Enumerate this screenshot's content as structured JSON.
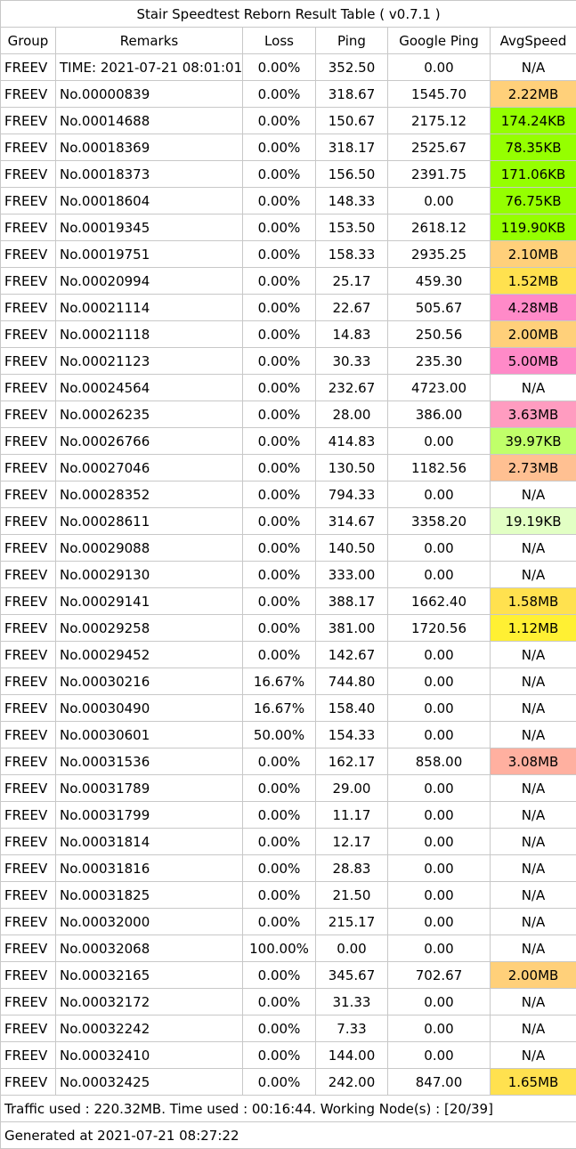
{
  "title": "Stair Speedtest Reborn Result Table ( v0.7.1 )",
  "columns": [
    "Group",
    "Remarks",
    "Loss",
    "Ping",
    "Google Ping",
    "AvgSpeed"
  ],
  "rows": [
    {
      "group": "FREEV",
      "remarks": "TIME: 2021-07-21 08:01:01",
      "loss": "0.00%",
      "ping": "352.50",
      "gping": "0.00",
      "speed": "N/A",
      "color": "#ffffff"
    },
    {
      "group": "FREEV",
      "remarks": "No.00000839",
      "loss": "0.00%",
      "ping": "318.67",
      "gping": "1545.70",
      "speed": "2.22MB",
      "color": "#ffd07a"
    },
    {
      "group": "FREEV",
      "remarks": "No.00014688",
      "loss": "0.00%",
      "ping": "150.67",
      "gping": "2175.12",
      "speed": "174.24KB",
      "color": "#95ff00"
    },
    {
      "group": "FREEV",
      "remarks": "No.00018369",
      "loss": "0.00%",
      "ping": "318.17",
      "gping": "2525.67",
      "speed": "78.35KB",
      "color": "#95ff00"
    },
    {
      "group": "FREEV",
      "remarks": "No.00018373",
      "loss": "0.00%",
      "ping": "156.50",
      "gping": "2391.75",
      "speed": "171.06KB",
      "color": "#95ff00"
    },
    {
      "group": "FREEV",
      "remarks": "No.00018604",
      "loss": "0.00%",
      "ping": "148.33",
      "gping": "0.00",
      "speed": "76.75KB",
      "color": "#95ff00"
    },
    {
      "group": "FREEV",
      "remarks": "No.00019345",
      "loss": "0.00%",
      "ping": "153.50",
      "gping": "2618.12",
      "speed": "119.90KB",
      "color": "#95ff00"
    },
    {
      "group": "FREEV",
      "remarks": "No.00019751",
      "loss": "0.00%",
      "ping": "158.33",
      "gping": "2935.25",
      "speed": "2.10MB",
      "color": "#ffd07a"
    },
    {
      "group": "FREEV",
      "remarks": "No.00020994",
      "loss": "0.00%",
      "ping": "25.17",
      "gping": "459.30",
      "speed": "1.52MB",
      "color": "#ffe14f"
    },
    {
      "group": "FREEV",
      "remarks": "No.00021114",
      "loss": "0.00%",
      "ping": "22.67",
      "gping": "505.67",
      "speed": "4.28MB",
      "color": "#ff8ac8"
    },
    {
      "group": "FREEV",
      "remarks": "No.00021118",
      "loss": "0.00%",
      "ping": "14.83",
      "gping": "250.56",
      "speed": "2.00MB",
      "color": "#ffd07a"
    },
    {
      "group": "FREEV",
      "remarks": "No.00021123",
      "loss": "0.00%",
      "ping": "30.33",
      "gping": "235.30",
      "speed": "5.00MB",
      "color": "#ff8ac8"
    },
    {
      "group": "FREEV",
      "remarks": "No.00024564",
      "loss": "0.00%",
      "ping": "232.67",
      "gping": "4723.00",
      "speed": "N/A",
      "color": "#ffffff"
    },
    {
      "group": "FREEV",
      "remarks": "No.00026235",
      "loss": "0.00%",
      "ping": "28.00",
      "gping": "386.00",
      "speed": "3.63MB",
      "color": "#ff9cc0"
    },
    {
      "group": "FREEV",
      "remarks": "No.00026766",
      "loss": "0.00%",
      "ping": "414.83",
      "gping": "0.00",
      "speed": "39.97KB",
      "color": "#c0ff6a"
    },
    {
      "group": "FREEV",
      "remarks": "No.00027046",
      "loss": "0.00%",
      "ping": "130.50",
      "gping": "1182.56",
      "speed": "2.73MB",
      "color": "#ffc092"
    },
    {
      "group": "FREEV",
      "remarks": "No.00028352",
      "loss": "0.00%",
      "ping": "794.33",
      "gping": "0.00",
      "speed": "N/A",
      "color": "#ffffff"
    },
    {
      "group": "FREEV",
      "remarks": "No.00028611",
      "loss": "0.00%",
      "ping": "314.67",
      "gping": "3358.20",
      "speed": "19.19KB",
      "color": "#e2ffc4"
    },
    {
      "group": "FREEV",
      "remarks": "No.00029088",
      "loss": "0.00%",
      "ping": "140.50",
      "gping": "0.00",
      "speed": "N/A",
      "color": "#ffffff"
    },
    {
      "group": "FREEV",
      "remarks": "No.00029130",
      "loss": "0.00%",
      "ping": "333.00",
      "gping": "0.00",
      "speed": "N/A",
      "color": "#ffffff"
    },
    {
      "group": "FREEV",
      "remarks": "No.00029141",
      "loss": "0.00%",
      "ping": "388.17",
      "gping": "1662.40",
      "speed": "1.58MB",
      "color": "#ffe14f"
    },
    {
      "group": "FREEV",
      "remarks": "No.00029258",
      "loss": "0.00%",
      "ping": "381.00",
      "gping": "1720.56",
      "speed": "1.12MB",
      "color": "#fff033"
    },
    {
      "group": "FREEV",
      "remarks": "No.00029452",
      "loss": "0.00%",
      "ping": "142.67",
      "gping": "0.00",
      "speed": "N/A",
      "color": "#ffffff"
    },
    {
      "group": "FREEV",
      "remarks": "No.00030216",
      "loss": "16.67%",
      "ping": "744.80",
      "gping": "0.00",
      "speed": "N/A",
      "color": "#ffffff"
    },
    {
      "group": "FREEV",
      "remarks": "No.00030490",
      "loss": "16.67%",
      "ping": "158.40",
      "gping": "0.00",
      "speed": "N/A",
      "color": "#ffffff"
    },
    {
      "group": "FREEV",
      "remarks": "No.00030601",
      "loss": "50.00%",
      "ping": "154.33",
      "gping": "0.00",
      "speed": "N/A",
      "color": "#ffffff"
    },
    {
      "group": "FREEV",
      "remarks": "No.00031536",
      "loss": "0.00%",
      "ping": "162.17",
      "gping": "858.00",
      "speed": "3.08MB",
      "color": "#ffb0a0"
    },
    {
      "group": "FREEV",
      "remarks": "No.00031789",
      "loss": "0.00%",
      "ping": "29.00",
      "gping": "0.00",
      "speed": "N/A",
      "color": "#ffffff"
    },
    {
      "group": "FREEV",
      "remarks": "No.00031799",
      "loss": "0.00%",
      "ping": "11.17",
      "gping": "0.00",
      "speed": "N/A",
      "color": "#ffffff"
    },
    {
      "group": "FREEV",
      "remarks": "No.00031814",
      "loss": "0.00%",
      "ping": "12.17",
      "gping": "0.00",
      "speed": "N/A",
      "color": "#ffffff"
    },
    {
      "group": "FREEV",
      "remarks": "No.00031816",
      "loss": "0.00%",
      "ping": "28.83",
      "gping": "0.00",
      "speed": "N/A",
      "color": "#ffffff"
    },
    {
      "group": "FREEV",
      "remarks": "No.00031825",
      "loss": "0.00%",
      "ping": "21.50",
      "gping": "0.00",
      "speed": "N/A",
      "color": "#ffffff"
    },
    {
      "group": "FREEV",
      "remarks": "No.00032000",
      "loss": "0.00%",
      "ping": "215.17",
      "gping": "0.00",
      "speed": "N/A",
      "color": "#ffffff"
    },
    {
      "group": "FREEV",
      "remarks": "No.00032068",
      "loss": "100.00%",
      "ping": "0.00",
      "gping": "0.00",
      "speed": "N/A",
      "color": "#ffffff"
    },
    {
      "group": "FREEV",
      "remarks": "No.00032165",
      "loss": "0.00%",
      "ping": "345.67",
      "gping": "702.67",
      "speed": "2.00MB",
      "color": "#ffd07a"
    },
    {
      "group": "FREEV",
      "remarks": "No.00032172",
      "loss": "0.00%",
      "ping": "31.33",
      "gping": "0.00",
      "speed": "N/A",
      "color": "#ffffff"
    },
    {
      "group": "FREEV",
      "remarks": "No.00032242",
      "loss": "0.00%",
      "ping": "7.33",
      "gping": "0.00",
      "speed": "N/A",
      "color": "#ffffff"
    },
    {
      "group": "FREEV",
      "remarks": "No.00032410",
      "loss": "0.00%",
      "ping": "144.00",
      "gping": "0.00",
      "speed": "N/A",
      "color": "#ffffff"
    },
    {
      "group": "FREEV",
      "remarks": "No.00032425",
      "loss": "0.00%",
      "ping": "242.00",
      "gping": "847.00",
      "speed": "1.65MB",
      "color": "#ffe14f"
    }
  ],
  "footer": {
    "traffic": "Traffic used : 220.32MB. Time used : 00:16:44. Working Node(s) : [20/39]",
    "generated": "Generated at 2021-07-21 08:27:22"
  }
}
